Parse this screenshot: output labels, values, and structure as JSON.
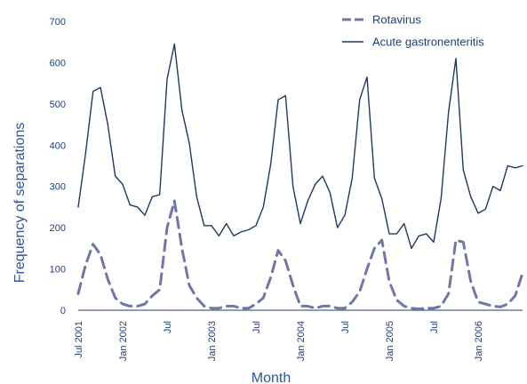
{
  "chart_data": {
    "type": "line",
    "title": "",
    "xlabel": "Month",
    "ylabel": "Frequency of separations",
    "ylim": [
      0,
      700
    ],
    "yticks": [
      0,
      100,
      200,
      300,
      400,
      500,
      600,
      700
    ],
    "x": [
      "2001-07",
      "2001-08",
      "2001-09",
      "2001-10",
      "2001-11",
      "2001-12",
      "2002-01",
      "2002-02",
      "2002-03",
      "2002-04",
      "2002-05",
      "2002-06",
      "2002-07",
      "2002-08",
      "2002-09",
      "2002-10",
      "2002-11",
      "2002-12",
      "2003-01",
      "2003-02",
      "2003-03",
      "2003-04",
      "2003-05",
      "2003-06",
      "2003-07",
      "2003-08",
      "2003-09",
      "2003-10",
      "2003-11",
      "2003-12",
      "2004-01",
      "2004-02",
      "2004-03",
      "2004-04",
      "2004-05",
      "2004-06",
      "2004-07",
      "2004-08",
      "2004-09",
      "2004-10",
      "2004-11",
      "2004-12",
      "2005-01",
      "2005-02",
      "2005-03",
      "2005-04",
      "2005-05",
      "2005-06",
      "2005-07",
      "2005-08",
      "2005-09",
      "2005-10",
      "2005-11",
      "2005-12",
      "2006-01",
      "2006-02",
      "2006-03",
      "2006-04",
      "2006-05",
      "2006-06",
      "2006-07"
    ],
    "xtick_labels": [
      {
        "x": "2001-07",
        "label": "Jul 2001"
      },
      {
        "x": "2002-01",
        "label": "Jan 2002"
      },
      {
        "x": "2002-07",
        "label": "Jul"
      },
      {
        "x": "2003-01",
        "label": "Jan 2003"
      },
      {
        "x": "2003-07",
        "label": "Jul"
      },
      {
        "x": "2004-01",
        "label": "Jan 2004"
      },
      {
        "x": "2004-07",
        "label": "Jul"
      },
      {
        "x": "2005-01",
        "label": "Jan 2005"
      },
      {
        "x": "2005-07",
        "label": "Jul"
      },
      {
        "x": "2006-01",
        "label": "Jan 2006"
      }
    ],
    "series": [
      {
        "name": "Rotavirus",
        "style": "dashed",
        "color": "#7176a6",
        "values": [
          40,
          110,
          160,
          135,
          75,
          30,
          15,
          10,
          10,
          15,
          35,
          50,
          200,
          265,
          150,
          60,
          30,
          10,
          5,
          5,
          10,
          10,
          5,
          5,
          15,
          30,
          80,
          145,
          120,
          60,
          10,
          10,
          5,
          10,
          10,
          5,
          5,
          20,
          45,
          100,
          150,
          170,
          70,
          25,
          10,
          5,
          3,
          5,
          5,
          10,
          40,
          170,
          165,
          70,
          20,
          15,
          10,
          8,
          15,
          35,
          90
        ]
      },
      {
        "name": "Acute gastronenteritis",
        "style": "solid",
        "color": "#1f3864",
        "values": [
          250,
          380,
          530,
          540,
          450,
          325,
          305,
          255,
          250,
          230,
          275,
          280,
          560,
          645,
          485,
          405,
          275,
          205,
          205,
          180,
          210,
          180,
          190,
          195,
          205,
          250,
          355,
          510,
          520,
          300,
          210,
          265,
          305,
          325,
          285,
          200,
          230,
          320,
          510,
          565,
          320,
          270,
          185,
          185,
          210,
          150,
          180,
          185,
          165,
          270,
          480,
          610,
          340,
          275,
          235,
          245,
          300,
          290,
          350,
          345,
          350
        ]
      }
    ],
    "legend_position": "top-right",
    "grid": false
  }
}
